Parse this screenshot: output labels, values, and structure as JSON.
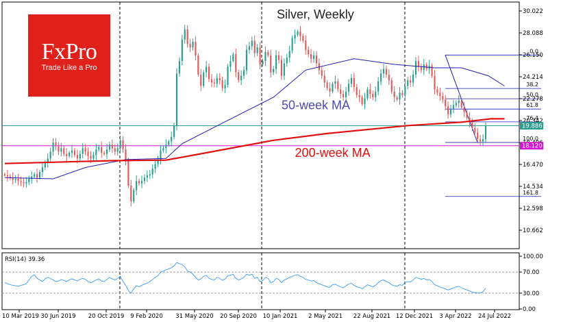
{
  "chart_data": {
    "type": "candlestick",
    "title": "Silver, Weekly",
    "ylim": [
      10.662,
      30.022
    ],
    "y_ticks": [
      "30.022",
      "28.088",
      "26.150",
      "24.214",
      "22.278",
      "20.342",
      "18.406",
      "16.470",
      "14.534",
      "12.598",
      "10.662"
    ],
    "x_ticks": [
      "10 Mar 2019",
      "30 Jun 2019",
      "20 Oct 2019",
      "9 Feb 2020",
      "31 May 2020",
      "20 Sep 2020",
      "10 Jan 2021",
      "2 May 2021",
      "22 Aug 2021",
      "12 Dec 2021",
      "3 Apr 2022",
      "24 Jul 2022"
    ],
    "price_labels": {
      "current": {
        "text": "19.886",
        "value": 19.886,
        "color": "#2e9e8f"
      },
      "support": {
        "text": "18.120",
        "value": 18.12,
        "color": "#d616d6"
      }
    },
    "weekly_close": [
      15.5,
      15.4,
      15.3,
      15.1,
      15.2,
      15.0,
      14.9,
      14.8,
      14.9,
      15.2,
      15.4,
      15.6,
      15.3,
      15.8,
      16.2,
      16.6,
      17.0,
      17.6,
      18.4,
      18.1,
      17.6,
      17.9,
      17.4,
      17.2,
      17.5,
      17.7,
      17.3,
      17.0,
      17.4,
      17.9,
      17.6,
      17.2,
      17.0,
      17.3,
      17.8,
      18.0,
      17.5,
      17.4,
      17.8,
      18.2,
      17.9,
      17.6,
      17.9,
      18.6,
      17.8,
      16.8,
      14.6,
      13.2,
      14.2,
      15.0,
      14.8,
      15.0,
      15.3,
      15.5,
      15.6,
      16.1,
      16.5,
      16.9,
      17.7,
      17.9,
      18.2,
      18.5,
      18.9,
      19.9,
      24.5,
      25.6,
      27.5,
      28.4,
      27.1,
      26.8,
      27.3,
      26.1,
      24.4,
      23.4,
      24.6,
      25.1,
      24.0,
      23.7,
      23.6,
      24.1,
      23.9,
      23.2,
      23.5,
      25.1,
      25.6,
      26.2,
      24.6,
      23.9,
      24.3,
      24.8,
      26.6,
      26.9,
      27.4,
      26.3,
      26.8,
      25.3,
      25.6,
      26.4,
      26.1,
      24.6,
      24.9,
      26.1,
      25.7,
      24.3,
      25.4,
      25.9,
      26.5,
      27.6,
      27.9,
      28.2,
      27.8,
      27.4,
      26.6,
      26.2,
      25.8,
      26.1,
      25.4,
      24.8,
      24.3,
      23.7,
      23.2,
      22.9,
      23.6,
      23.8,
      23.1,
      22.7,
      22.4,
      22.9,
      23.6,
      24.1,
      23.3,
      22.6,
      22.4,
      21.8,
      22.3,
      23.1,
      22.7,
      22.4,
      22.9,
      23.8,
      24.5,
      24.9,
      24.4,
      23.9,
      22.9,
      22.4,
      22.2,
      22.8,
      22.6,
      23.4,
      23.9,
      23.7,
      24.4,
      25.6,
      25.1,
      24.8,
      25.3,
      24.9,
      25.2,
      24.3,
      23.1,
      22.8,
      22.5,
      22.2,
      21.6,
      20.9,
      21.4,
      21.7,
      21.9,
      22.1,
      21.5,
      21.1,
      20.6,
      20.2,
      19.7,
      19.3,
      18.7,
      18.5,
      18.7,
      19.886
    ],
    "series": [
      {
        "name": "50-week MA",
        "color": "#1d1db4",
        "values_at": [
          [
            0,
            15.3
          ],
          [
            18,
            15.2
          ],
          [
            30,
            16.2
          ],
          [
            45,
            16.9
          ],
          [
            60,
            17.0
          ],
          [
            66,
            18.3
          ],
          [
            80,
            20.0
          ],
          [
            100,
            22.4
          ],
          [
            112,
            24.8
          ],
          [
            130,
            25.8
          ],
          [
            145,
            25.3
          ],
          [
            160,
            25.0
          ],
          [
            170,
            25.0
          ],
          [
            180,
            24.3
          ],
          [
            186,
            23.4
          ]
        ]
      },
      {
        "name": "200-week MA",
        "color": "#e01010",
        "values_at": [
          [
            0,
            16.55
          ],
          [
            40,
            16.8
          ],
          [
            60,
            16.85
          ],
          [
            75,
            17.5
          ],
          [
            100,
            18.6
          ],
          [
            120,
            19.2
          ],
          [
            150,
            19.9
          ],
          [
            170,
            20.2
          ],
          [
            181,
            20.5
          ],
          [
            186,
            20.5
          ]
        ]
      }
    ],
    "annotations": [
      {
        "text": "50-week MA",
        "color": "#4b4bb3",
        "x_label_at": 103,
        "y": 21.35
      },
      {
        "text": "200-week MA",
        "color": "#e01010",
        "x_label_at": 108,
        "y": 17.15
      }
    ],
    "fibonacci": {
      "levels": [
        {
          "label": "0.0",
          "value": 26.13
        },
        {
          "label": "38.2",
          "value": 23.18
        },
        {
          "label": "50.0",
          "value": 22.27
        },
        {
          "label": "61.8",
          "value": 21.36
        },
        {
          "label": "76.4",
          "value": 20.23
        },
        {
          "label": "100.0",
          "value": 18.41
        },
        {
          "label": "161.8",
          "value": 13.64
        }
      ]
    },
    "grid": false
  },
  "rsi": {
    "label": "RSI(14) 39.36",
    "y_ticks": [
      "100.00",
      "70.00",
      "30.00",
      "0.00"
    ],
    "levels": [
      70,
      30
    ],
    "values": [
      50,
      48,
      46,
      45,
      44,
      43,
      45,
      46,
      48,
      55,
      62,
      65,
      58,
      55,
      52,
      57,
      60,
      58,
      55,
      52,
      53,
      56,
      54,
      52,
      55,
      57,
      55,
      53,
      56,
      58,
      56,
      52,
      50,
      52,
      55,
      57,
      53,
      52,
      56,
      60,
      57,
      55,
      58,
      62,
      52,
      45,
      35,
      30,
      38,
      44,
      42,
      45,
      47,
      49,
      52,
      56,
      60,
      63,
      70,
      72,
      74,
      76,
      78,
      82,
      88,
      86,
      84,
      80,
      72,
      70,
      66,
      60,
      55,
      57,
      62,
      64,
      58,
      56,
      55,
      60,
      58,
      54,
      57,
      63,
      64,
      66,
      58,
      55,
      57,
      60,
      66,
      64,
      66,
      58,
      60,
      52,
      54,
      60,
      58,
      50,
      52,
      58,
      56,
      50,
      55,
      57,
      60,
      62,
      64,
      65,
      62,
      60,
      56,
      55,
      53,
      54,
      50,
      48,
      46,
      44,
      42,
      41,
      46,
      47,
      44,
      42,
      40,
      44,
      47,
      49,
      45,
      42,
      41,
      38,
      42,
      46,
      44,
      42,
      45,
      50,
      54,
      55,
      52,
      50,
      46,
      44,
      43,
      46,
      45,
      50,
      52,
      51,
      55,
      60,
      58,
      56,
      58,
      55,
      56,
      52,
      46,
      44,
      42,
      40,
      38,
      36,
      38,
      40,
      42,
      43,
      40,
      38,
      36,
      34,
      32,
      31,
      30,
      30,
      33,
      39.36
    ]
  }
}
